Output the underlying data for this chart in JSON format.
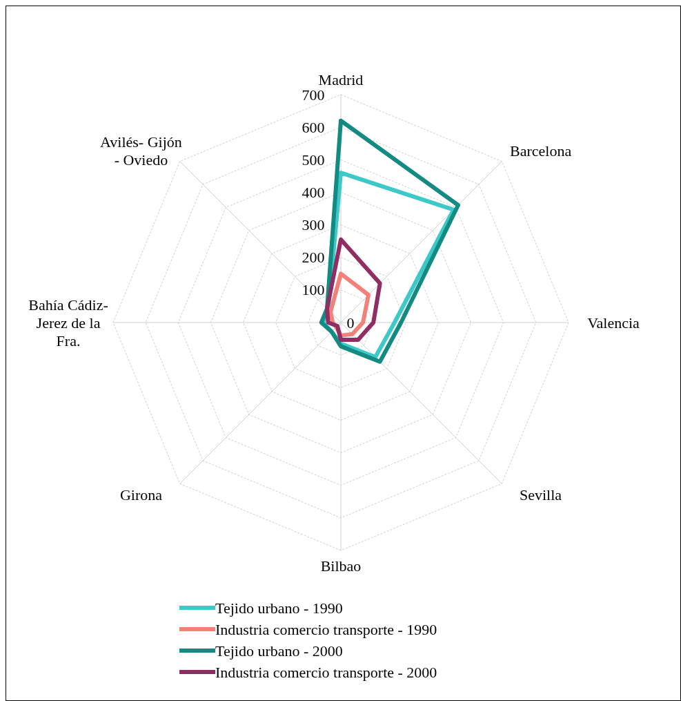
{
  "chart_data": {
    "type": "radar",
    "categories": [
      "Madrid",
      "Barcelona",
      "Valencia",
      "Sevilla",
      "Bilbao",
      "Girona",
      "Bahía Cádiz-\nJerez de la\nFra.",
      "Avilés- Gijón\n- Oviedo"
    ],
    "ylim": [
      0,
      700
    ],
    "yticks": [
      0,
      100,
      200,
      300,
      400,
      500,
      600,
      700
    ],
    "grid": true,
    "legend": "bottom",
    "series": [
      {
        "name": "Tejido urbano - 1990",
        "color": "#3ec9c9",
        "values": [
          460,
          490,
          165,
          150,
          65,
          40,
          55,
          55
        ]
      },
      {
        "name": "Industria comercio transporte - 1990",
        "color": "#f4807a",
        "values": [
          150,
          120,
          68,
          50,
          40,
          20,
          25,
          45
        ]
      },
      {
        "name": "Tejido urbano - 2000",
        "color": "#138a82",
        "values": [
          620,
          510,
          185,
          170,
          73,
          40,
          60,
          60
        ]
      },
      {
        "name": "Industria comercio transporte - 2000",
        "color": "#8e2e62",
        "values": [
          255,
          170,
          100,
          75,
          53,
          15,
          39,
          60
        ]
      }
    ]
  }
}
